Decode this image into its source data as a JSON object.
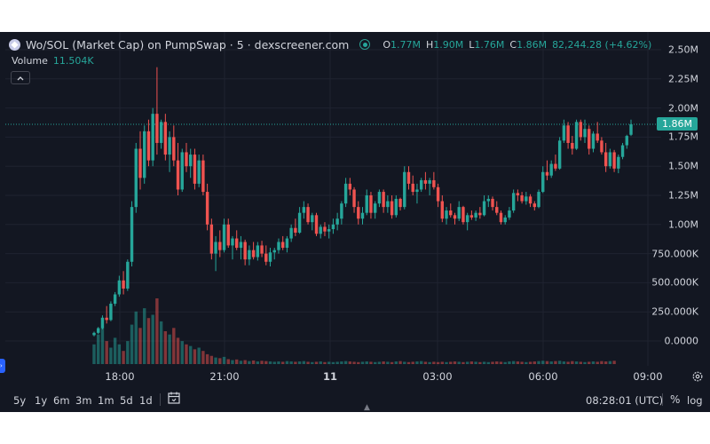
{
  "header": {
    "title": "Wo/SOL (Market Cap) on PumpSwap · 5 · dexscreener.com",
    "ohlc": [
      {
        "k": "O",
        "v": "1.77M"
      },
      {
        "k": "H",
        "v": "1.90M"
      },
      {
        "k": "L",
        "v": "1.76M"
      },
      {
        "k": "C",
        "v": "1.86M"
      }
    ],
    "change": "82,244.28 (+4.62%)"
  },
  "volume": {
    "label": "Volume",
    "value": "11.504K"
  },
  "price_badge": "1.86M",
  "ranges": [
    "5y",
    "1y",
    "6m",
    "3m",
    "1m",
    "5d",
    "1d"
  ],
  "clock": "08:28:01 (UTC)",
  "buttons": {
    "percent": "%",
    "log": "log"
  },
  "colors": {
    "background": "#131722",
    "up": "#26a69a",
    "down": "#ef5350",
    "text": "#d1d4dc"
  },
  "icons": [
    "token-icon",
    "status-dot-icon",
    "chevron-up-icon",
    "calendar-icon",
    "settings-icon",
    "arrow-up-icon"
  ],
  "chart_data": {
    "type": "candlestick",
    "series": [
      {
        "name": "Market Cap",
        "type": "candlestick"
      },
      {
        "name": "Volume",
        "type": "bar"
      }
    ],
    "yticks": [
      "2.50M",
      "2.25M",
      "2.00M",
      "1.75M",
      "1.50M",
      "1.25M",
      "1.00M",
      "750.000K",
      "500.000K",
      "250.000K",
      "0.0000"
    ],
    "ylim": [
      0,
      2500000
    ],
    "xticks": [
      {
        "label": "18:00",
        "bold": false
      },
      {
        "label": "21:00",
        "bold": false
      },
      {
        "label": "11",
        "bold": true
      },
      {
        "label": "03:00",
        "bold": false
      },
      {
        "label": "06:00",
        "bold": false
      },
      {
        "label": "09:00",
        "bold": false
      }
    ],
    "close_line": 1860000,
    "candles": [
      [
        50000,
        80000,
        40000,
        70000
      ],
      [
        70000,
        120000,
        60000,
        110000
      ],
      [
        110000,
        220000,
        100000,
        200000
      ],
      [
        200000,
        300000,
        150000,
        180000
      ],
      [
        180000,
        340000,
        170000,
        320000
      ],
      [
        320000,
        420000,
        300000,
        400000
      ],
      [
        400000,
        560000,
        380000,
        520000
      ],
      [
        520000,
        600000,
        400000,
        450000
      ],
      [
        450000,
        700000,
        430000,
        680000
      ],
      [
        680000,
        1200000,
        640000,
        1150000
      ],
      [
        1150000,
        1700000,
        1100000,
        1650000
      ],
      [
        1650000,
        1800000,
        1300000,
        1400000
      ],
      [
        1400000,
        1850000,
        1350000,
        1800000
      ],
      [
        1800000,
        1900000,
        1500000,
        1550000
      ],
      [
        1550000,
        2000000,
        1500000,
        1950000
      ],
      [
        1950000,
        2350000,
        1600000,
        1700000
      ],
      [
        1700000,
        1900000,
        1650000,
        1880000
      ],
      [
        1880000,
        1950000,
        1550000,
        1600000
      ],
      [
        1600000,
        1800000,
        1450000,
        1750000
      ],
      [
        1750000,
        1850000,
        1500000,
        1550000
      ],
      [
        1550000,
        1700000,
        1250000,
        1300000
      ],
      [
        1300000,
        1650000,
        1280000,
        1620000
      ],
      [
        1620000,
        1700000,
        1450000,
        1500000
      ],
      [
        1500000,
        1650000,
        1400000,
        1600000
      ],
      [
        1600000,
        1650000,
        1300000,
        1350000
      ],
      [
        1350000,
        1600000,
        1320000,
        1550000
      ],
      [
        1550000,
        1600000,
        1250000,
        1280000
      ],
      [
        1280000,
        1350000,
        950000,
        1000000
      ],
      [
        1000000,
        1050000,
        700000,
        750000
      ],
      [
        750000,
        900000,
        600000,
        850000
      ],
      [
        850000,
        950000,
        720000,
        780000
      ],
      [
        780000,
        1050000,
        760000,
        1000000
      ],
      [
        1000000,
        1050000,
        800000,
        820000
      ],
      [
        820000,
        900000,
        700000,
        880000
      ],
      [
        880000,
        950000,
        780000,
        800000
      ],
      [
        800000,
        900000,
        700000,
        850000
      ],
      [
        850000,
        870000,
        650000,
        700000
      ],
      [
        700000,
        820000,
        650000,
        780000
      ],
      [
        780000,
        850000,
        700000,
        720000
      ],
      [
        720000,
        850000,
        690000,
        820000
      ],
      [
        820000,
        860000,
        720000,
        750000
      ],
      [
        750000,
        820000,
        650000,
        680000
      ],
      [
        680000,
        800000,
        640000,
        760000
      ],
      [
        760000,
        800000,
        700000,
        780000
      ],
      [
        780000,
        880000,
        750000,
        850000
      ],
      [
        850000,
        900000,
        780000,
        800000
      ],
      [
        800000,
        900000,
        760000,
        880000
      ],
      [
        880000,
        1000000,
        850000,
        970000
      ],
      [
        970000,
        1050000,
        900000,
        930000
      ],
      [
        930000,
        1150000,
        920000,
        1100000
      ],
      [
        1100000,
        1200000,
        1050000,
        1150000
      ],
      [
        1150000,
        1180000,
        1000000,
        1020000
      ],
      [
        1020000,
        1100000,
        950000,
        1080000
      ],
      [
        1080000,
        1100000,
        900000,
        920000
      ],
      [
        920000,
        1000000,
        880000,
        980000
      ],
      [
        980000,
        1020000,
        900000,
        940000
      ],
      [
        940000,
        1000000,
        880000,
        960000
      ],
      [
        960000,
        1050000,
        920000,
        1000000
      ],
      [
        1000000,
        1100000,
        950000,
        1050000
      ],
      [
        1050000,
        1200000,
        1000000,
        1180000
      ],
      [
        1180000,
        1400000,
        1150000,
        1350000
      ],
      [
        1350000,
        1400000,
        1250000,
        1300000
      ],
      [
        1300000,
        1320000,
        1100000,
        1150000
      ],
      [
        1150000,
        1200000,
        1000000,
        1050000
      ],
      [
        1050000,
        1150000,
        1000000,
        1100000
      ],
      [
        1100000,
        1300000,
        1080000,
        1250000
      ],
      [
        1250000,
        1280000,
        1050000,
        1100000
      ],
      [
        1100000,
        1200000,
        1050000,
        1180000
      ],
      [
        1180000,
        1300000,
        1150000,
        1280000
      ],
      [
        1280000,
        1300000,
        1100000,
        1150000
      ],
      [
        1150000,
        1250000,
        1100000,
        1200000
      ],
      [
        1200000,
        1250000,
        1050000,
        1080000
      ],
      [
        1080000,
        1250000,
        1060000,
        1220000
      ],
      [
        1220000,
        1230000,
        1120000,
        1150000
      ],
      [
        1150000,
        1500000,
        1130000,
        1450000
      ],
      [
        1450000,
        1500000,
        1300000,
        1350000
      ],
      [
        1350000,
        1420000,
        1250000,
        1280000
      ],
      [
        1280000,
        1350000,
        1180000,
        1300000
      ],
      [
        1300000,
        1400000,
        1280000,
        1380000
      ],
      [
        1380000,
        1450000,
        1300000,
        1350000
      ],
      [
        1350000,
        1400000,
        1250000,
        1380000
      ],
      [
        1380000,
        1450000,
        1300000,
        1320000
      ],
      [
        1320000,
        1350000,
        1150000,
        1200000
      ],
      [
        1200000,
        1250000,
        1020000,
        1050000
      ],
      [
        1050000,
        1150000,
        1000000,
        1120000
      ],
      [
        1120000,
        1180000,
        1060000,
        1080000
      ],
      [
        1080000,
        1100000,
        1000000,
        1050000
      ],
      [
        1050000,
        1200000,
        1030000,
        1150000
      ],
      [
        1150000,
        1160000,
        1000000,
        1020000
      ],
      [
        1020000,
        1100000,
        950000,
        1080000
      ],
      [
        1080000,
        1120000,
        1040000,
        1060000
      ],
      [
        1060000,
        1120000,
        1030000,
        1100000
      ],
      [
        1100000,
        1150000,
        1050000,
        1080000
      ],
      [
        1080000,
        1250000,
        1070000,
        1200000
      ],
      [
        1200000,
        1250000,
        1150000,
        1220000
      ],
      [
        1220000,
        1240000,
        1120000,
        1150000
      ],
      [
        1150000,
        1200000,
        1080000,
        1100000
      ],
      [
        1100000,
        1120000,
        1000000,
        1020000
      ],
      [
        1020000,
        1080000,
        1000000,
        1060000
      ],
      [
        1060000,
        1150000,
        1040000,
        1120000
      ],
      [
        1120000,
        1300000,
        1100000,
        1270000
      ],
      [
        1270000,
        1300000,
        1200000,
        1250000
      ],
      [
        1250000,
        1280000,
        1180000,
        1200000
      ],
      [
        1200000,
        1280000,
        1170000,
        1240000
      ],
      [
        1240000,
        1260000,
        1150000,
        1180000
      ],
      [
        1180000,
        1200000,
        1120000,
        1150000
      ],
      [
        1150000,
        1300000,
        1140000,
        1280000
      ],
      [
        1280000,
        1500000,
        1270000,
        1450000
      ],
      [
        1450000,
        1550000,
        1380000,
        1420000
      ],
      [
        1420000,
        1550000,
        1400000,
        1520000
      ],
      [
        1520000,
        1600000,
        1460000,
        1480000
      ],
      [
        1480000,
        1750000,
        1470000,
        1720000
      ],
      [
        1720000,
        1900000,
        1700000,
        1850000
      ],
      [
        1850000,
        1880000,
        1650000,
        1700000
      ],
      [
        1700000,
        1760000,
        1600000,
        1650000
      ],
      [
        1650000,
        1900000,
        1640000,
        1880000
      ],
      [
        1880000,
        1900000,
        1720000,
        1750000
      ],
      [
        1750000,
        1900000,
        1700000,
        1820000
      ],
      [
        1820000,
        1850000,
        1600000,
        1650000
      ],
      [
        1650000,
        1800000,
        1620000,
        1780000
      ],
      [
        1780000,
        1880000,
        1700000,
        1720000
      ],
      [
        1720000,
        1750000,
        1600000,
        1620000
      ],
      [
        1620000,
        1700000,
        1450000,
        1500000
      ],
      [
        1500000,
        1650000,
        1480000,
        1620000
      ],
      [
        1620000,
        1640000,
        1450000,
        1480000
      ],
      [
        1480000,
        1600000,
        1440000,
        1580000
      ],
      [
        1580000,
        1700000,
        1560000,
        1680000
      ],
      [
        1680000,
        1770000,
        1650000,
        1760000
      ],
      [
        1770000,
        1900000,
        1760000,
        1860000
      ]
    ],
    "volumes": [
      60,
      90,
      110,
      70,
      50,
      80,
      60,
      40,
      70,
      120,
      160,
      110,
      170,
      140,
      150,
      200,
      130,
      100,
      90,
      110,
      80,
      70,
      60,
      55,
      45,
      50,
      40,
      30,
      25,
      20,
      18,
      22,
      15,
      12,
      14,
      10,
      12,
      9,
      11,
      8,
      10,
      9,
      8,
      7,
      8,
      7,
      9,
      8,
      7,
      8,
      9,
      7,
      6,
      7,
      8,
      6,
      7,
      6,
      7,
      8,
      9,
      8,
      7,
      6,
      7,
      8,
      7,
      6,
      7,
      8,
      7,
      6,
      8,
      9,
      7,
      6,
      7,
      8,
      9,
      7,
      6,
      7,
      6,
      7,
      6,
      7,
      8,
      7,
      6,
      7,
      8,
      7,
      6,
      7,
      6,
      7,
      8,
      7,
      6,
      8,
      9,
      8,
      7,
      6,
      7,
      8,
      9,
      10,
      9,
      8,
      9,
      10,
      8,
      7,
      9,
      8,
      7,
      6,
      7,
      8,
      7,
      9,
      8,
      9,
      10
    ]
  }
}
